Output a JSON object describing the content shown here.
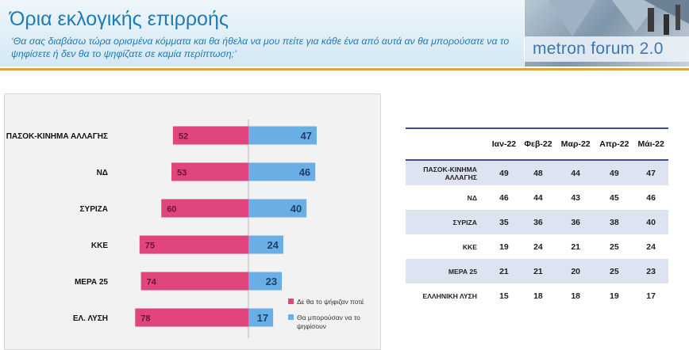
{
  "header": {
    "title": "Όρια εκλογικής επιρροής",
    "subtitle": "‘Θα σας διαβάσω τώρα ορισμένα κόμματα και θα ήθελα να μου πείτε για κάθε ένα από αυτά αν θα μπορούσατε να το ψηφίσετε ή δεν θα το ψηφίζατε σε καμία περίπτωση;’",
    "logo": "metron forum 2.0"
  },
  "chart_data": {
    "type": "bar",
    "orientation": "horizontal-diverging",
    "categories": [
      "ΠΑΣΟΚ-ΚΙΝΗΜΑ ΑΛΛΑΓΗΣ",
      "ΝΔ",
      "ΣΥΡΙΖΑ",
      "ΚΚΕ",
      "ΜΕΡΑ 25",
      "ΕΛ. ΛΥΣΗ"
    ],
    "series": [
      {
        "name": "Δε θα το ψήφιζαν ποτέ",
        "color": "#e0457e",
        "values": [
          52,
          53,
          60,
          75,
          74,
          78
        ]
      },
      {
        "name": "Θα μπορούσαν να το ψηφίσουν",
        "color": "#6aaee6",
        "values": [
          47,
          46,
          40,
          24,
          23,
          17
        ]
      }
    ],
    "legend_position": "bottom-right",
    "grid": false
  },
  "table": {
    "headers": [
      "",
      "Ιαν-22",
      "Φεβ-22",
      "Μαρ-22",
      "Απρ-22",
      "Μάι-22"
    ],
    "rows": [
      {
        "party": "ΠΑΣΟΚ-ΚΙΝΗΜΑ ΑΛΛΑΓΗΣ",
        "values": [
          "49",
          "48",
          "44",
          "49",
          "47"
        ]
      },
      {
        "party": "ΝΔ",
        "values": [
          "46",
          "44",
          "43",
          "45",
          "46"
        ]
      },
      {
        "party": "ΣΥΡΙΖΑ",
        "values": [
          "35",
          "36",
          "36",
          "38",
          "40"
        ]
      },
      {
        "party": "ΚΚΕ",
        "values": [
          "19",
          "24",
          "21",
          "25",
          "24"
        ]
      },
      {
        "party": "ΜΕΡΑ 25",
        "values": [
          "21",
          "21",
          "20",
          "25",
          "23"
        ]
      },
      {
        "party": "ΕΛΛΗΝΙΚΗ ΛΥΣΗ",
        "values": [
          "15",
          "18",
          "18",
          "19",
          "17"
        ]
      }
    ]
  }
}
